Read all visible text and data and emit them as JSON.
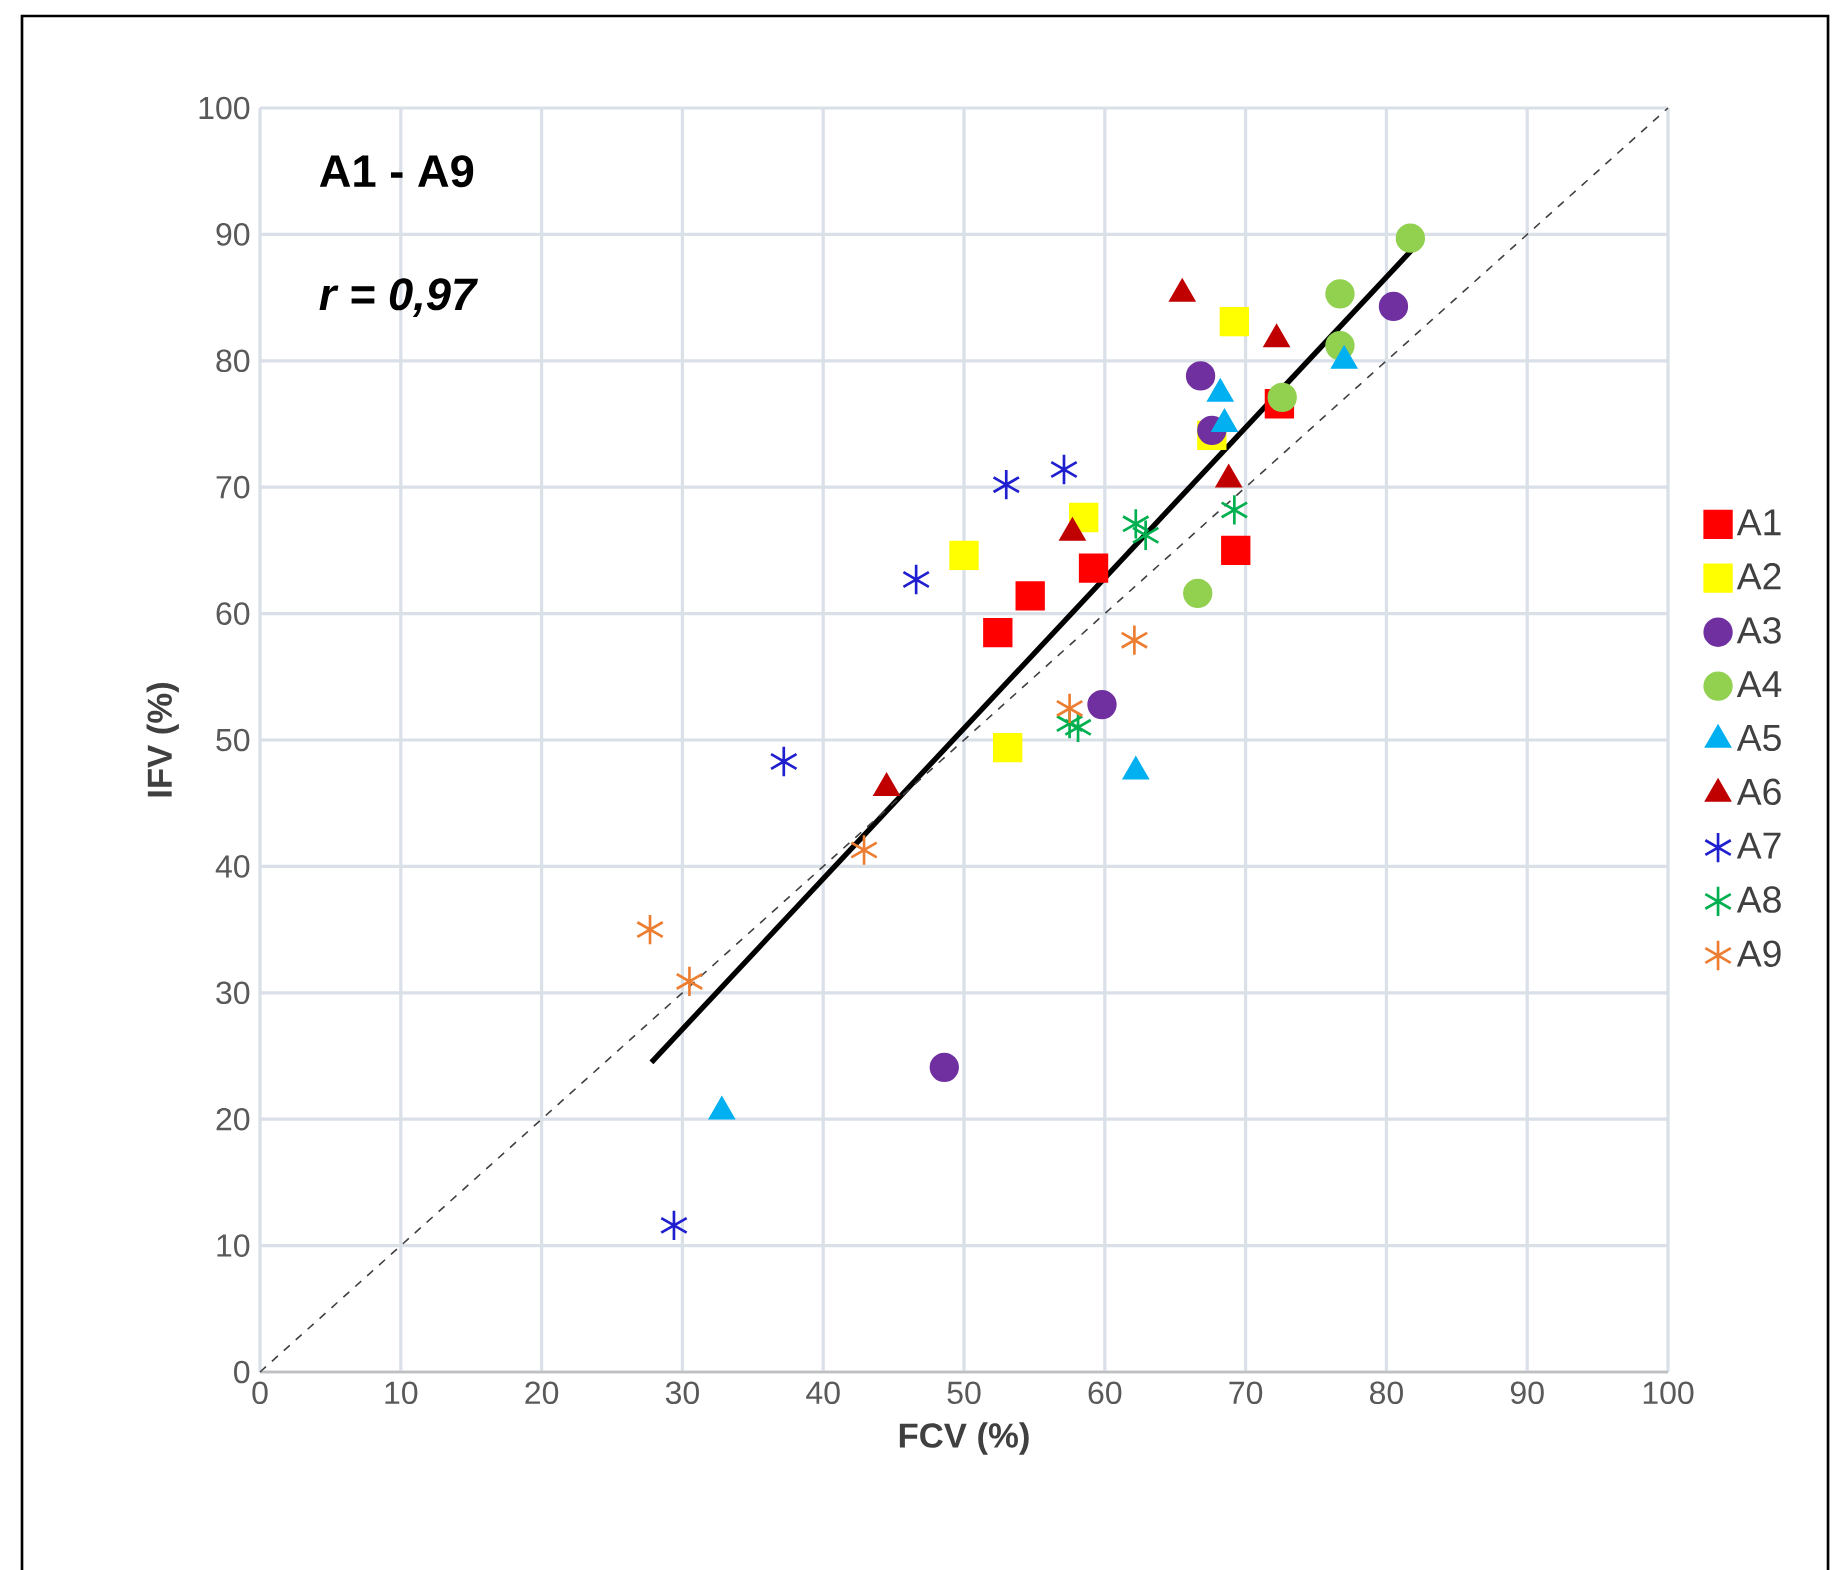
{
  "chart_data": {
    "type": "scatter",
    "xlabel": "FCV (%)",
    "ylabel": "IFV (%)",
    "annotations": [
      "A1 - A9",
      "r = 0,97"
    ],
    "xlim": [
      0,
      100
    ],
    "ylim": [
      0,
      100
    ],
    "xticks": [
      0,
      10,
      20,
      30,
      40,
      50,
      60,
      70,
      80,
      90,
      100
    ],
    "yticks": [
      0,
      10,
      20,
      30,
      40,
      50,
      60,
      70,
      80,
      90,
      100
    ],
    "grid": true,
    "legend": "right",
    "series": [
      {
        "name": "A1",
        "color": "#ff0000",
        "marker": "square",
        "x": [
          52.4,
          54.7,
          59.2,
          69.3,
          72.4
        ],
        "values": [
          58.5,
          61.4,
          63.6,
          65.0,
          76.6
        ]
      },
      {
        "name": "A2",
        "color": "#ffff00",
        "marker": "square",
        "x": [
          50.0,
          58.5,
          53.1,
          69.2,
          67.6
        ],
        "values": [
          64.6,
          67.6,
          49.4,
          83.1,
          74.1
        ]
      },
      {
        "name": "A3",
        "color": "#7030a0",
        "marker": "circle",
        "x": [
          48.6,
          59.8,
          66.8,
          67.6,
          80.5
        ],
        "values": [
          24.1,
          52.8,
          78.8,
          74.5,
          84.3
        ]
      },
      {
        "name": "A4",
        "color": "#92d050",
        "marker": "circle",
        "x": [
          66.6,
          72.6,
          76.7,
          76.7,
          81.7
        ],
        "values": [
          61.6,
          77.1,
          85.3,
          81.2,
          89.7
        ]
      },
      {
        "name": "A5",
        "color": "#00b0f0",
        "marker": "triangle",
        "x": [
          32.8,
          62.2,
          68.2,
          68.5,
          77.0
        ],
        "values": [
          20.6,
          47.5,
          77.4,
          75.0,
          80.0
        ]
      },
      {
        "name": "A6",
        "color": "#c00000",
        "marker": "triangle",
        "x": [
          44.5,
          57.7,
          68.8,
          65.5,
          72.2
        ],
        "values": [
          46.2,
          66.4,
          70.6,
          85.3,
          81.7
        ]
      },
      {
        "name": "A7",
        "color": "#1f1fd0",
        "marker": "cross",
        "x": [
          29.4,
          37.2,
          46.6,
          53.0,
          57.1
        ],
        "values": [
          11.6,
          48.3,
          62.7,
          70.2,
          71.4
        ]
      },
      {
        "name": "A8",
        "color": "#00b050",
        "marker": "cross",
        "x": [
          57.5,
          58.1,
          62.2,
          62.9,
          69.2
        ],
        "values": [
          51.3,
          51.0,
          67.1,
          66.2,
          68.2
        ]
      },
      {
        "name": "A9",
        "color": "#ed7d31",
        "marker": "cross",
        "x": [
          27.7,
          30.5,
          42.9,
          57.5,
          62.1
        ],
        "values": [
          35.0,
          30.9,
          41.3,
          52.5,
          57.9
        ]
      },
      {
        "type": "line",
        "color": "#000000",
        "line_style": "solid",
        "marker": "none",
        "x": [
          27.8,
          82.0
        ],
        "values": [
          24.5,
          89.0
        ]
      },
      {
        "type": "line",
        "color": "#404040",
        "line_style": "dashed",
        "marker": "none",
        "x": [
          0,
          100
        ],
        "values": [
          0,
          100
        ]
      }
    ]
  }
}
